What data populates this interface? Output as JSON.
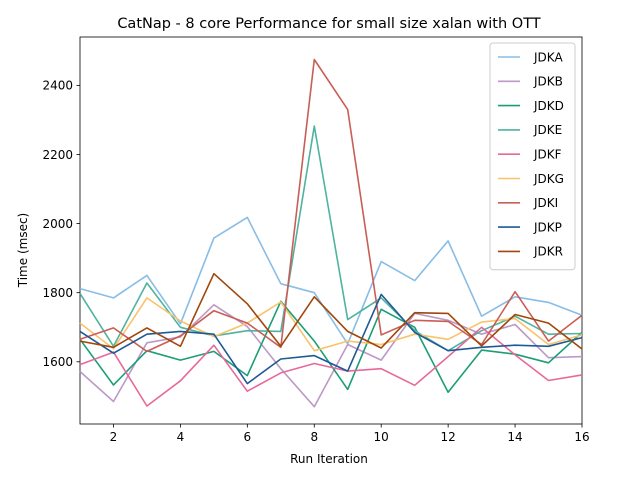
{
  "chart_data": {
    "type": "line",
    "title": "CatNap - 8 core Performance for small size xalan with OTT",
    "xlabel": "Run Iteration",
    "ylabel": "Time (msec)",
    "xlim": [
      1,
      16
    ],
    "ylim": [
      1420,
      2540
    ],
    "xticks": [
      2,
      4,
      6,
      8,
      10,
      12,
      14,
      16
    ],
    "yticks": [
      1600,
      1800,
      2000,
      2200,
      2400
    ],
    "grid": false,
    "legend_position": "top-right",
    "x": [
      1,
      2,
      3,
      4,
      5,
      6,
      7,
      8,
      9,
      10,
      11,
      12,
      13,
      14,
      15,
      16
    ],
    "series": [
      {
        "name": "JDKA",
        "color": "#88bde6",
        "values": [
          1812,
          1785,
          1850,
          1710,
          1958,
          2018,
          1826,
          1800,
          1652,
          1890,
          1835,
          1950,
          1732,
          1788,
          1772,
          1735
        ]
      },
      {
        "name": "JDKB",
        "color": "#bc99c7",
        "values": [
          1572,
          1485,
          1655,
          1672,
          1765,
          1702,
          1580,
          1470,
          1650,
          1605,
          1740,
          1720,
          1680,
          1708,
          1612,
          1615
        ]
      },
      {
        "name": "JDKD",
        "color": "#1b9e77",
        "values": [
          1665,
          1533,
          1632,
          1605,
          1630,
          1560,
          1775,
          1660,
          1520,
          1752,
          1700,
          1512,
          1634,
          1622,
          1597,
          1685
        ]
      },
      {
        "name": "JDKE",
        "color": "#4eb3a0",
        "values": [
          1798,
          1645,
          1828,
          1700,
          1675,
          1690,
          1688,
          2282,
          1722,
          1785,
          1690,
          1632,
          1690,
          1732,
          1680,
          1682
        ]
      },
      {
        "name": "JDKF",
        "color": "#e7699a",
        "values": [
          1592,
          1628,
          1472,
          1545,
          1648,
          1515,
          1568,
          1595,
          1573,
          1580,
          1532,
          1615,
          1700,
          1620,
          1546,
          1562
        ]
      },
      {
        "name": "JDKG",
        "color": "#f8c36a",
        "values": [
          1712,
          1638,
          1785,
          1718,
          1673,
          1712,
          1773,
          1632,
          1660,
          1650,
          1680,
          1665,
          1715,
          1725,
          1650,
          1678
        ]
      },
      {
        "name": "JDKI",
        "color": "#c95e56",
        "values": [
          1665,
          1698,
          1630,
          1675,
          1748,
          1712,
          1642,
          2475,
          2330,
          1678,
          1720,
          1717,
          1650,
          1803,
          1660,
          1735
        ]
      },
      {
        "name": "JDKP",
        "color": "#1f5a96",
        "values": [
          1688,
          1625,
          1680,
          1688,
          1680,
          1537,
          1608,
          1618,
          1573,
          1795,
          1685,
          1632,
          1642,
          1648,
          1645,
          1670
        ]
      },
      {
        "name": "JDKR",
        "color": "#a0470b",
        "values": [
          1660,
          1642,
          1698,
          1645,
          1855,
          1768,
          1645,
          1788,
          1688,
          1640,
          1742,
          1740,
          1646,
          1737,
          1712,
          1637
        ]
      }
    ]
  }
}
